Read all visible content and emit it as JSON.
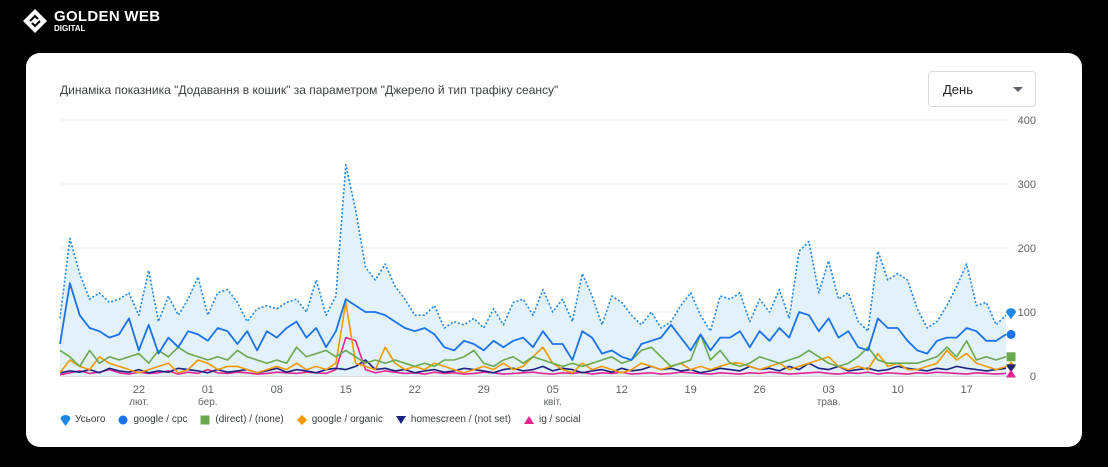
{
  "brand": {
    "name": "GOLDEN WEB",
    "sub": "DIGITAL"
  },
  "controls": {
    "granularity": "День"
  },
  "colors": {
    "total": "#1e88e5",
    "google_cpc": "#1a73e8",
    "direct": "#6aa84f",
    "google_organic": "#f29900",
    "homescreen": "#1a237e",
    "ig_social": "#e52592",
    "area_fill": "#e3f1fb"
  },
  "chart_data": {
    "type": "line",
    "title": "Динаміка показника \"Додавання в кошик\" за параметром \"Джерело й тип трафіку сеансу\"",
    "ylim": [
      0,
      400
    ],
    "yticks": [
      "400",
      "300",
      "200",
      "100",
      "0"
    ],
    "grid": true,
    "legend_position": "bottom-left",
    "x_tick_labels": [
      {
        "day": "22",
        "month": "лют."
      },
      {
        "day": "01",
        "month": "бер."
      },
      {
        "day": "08",
        "month": ""
      },
      {
        "day": "15",
        "month": ""
      },
      {
        "day": "22",
        "month": ""
      },
      {
        "day": "29",
        "month": ""
      },
      {
        "day": "05",
        "month": "квіт."
      },
      {
        "day": "12",
        "month": ""
      },
      {
        "day": "19",
        "month": ""
      },
      {
        "day": "26",
        "month": ""
      },
      {
        "day": "03",
        "month": "трав."
      },
      {
        "day": "10",
        "month": ""
      },
      {
        "day": "17",
        "month": ""
      }
    ],
    "series": [
      {
        "name": "Усього",
        "marker": "pin",
        "values": [
          90,
          215,
          160,
          120,
          130,
          115,
          120,
          130,
          95,
          165,
          85,
          125,
          95,
          120,
          155,
          95,
          130,
          135,
          115,
          85,
          105,
          110,
          105,
          115,
          120,
          100,
          150,
          95,
          125,
          330,
          260,
          170,
          150,
          175,
          140,
          120,
          95,
          95,
          110,
          75,
          85,
          80,
          90,
          75,
          105,
          80,
          115,
          120,
          95,
          135,
          100,
          120,
          85,
          160,
          125,
          80,
          125,
          115,
          95,
          80,
          100,
          75,
          85,
          110,
          130,
          95,
          70,
          125,
          120,
          130,
          85,
          120,
          100,
          135,
          90,
          195,
          210,
          130,
          180,
          120,
          130,
          85,
          70,
          195,
          150,
          160,
          150,
          105,
          75,
          85,
          110,
          140,
          175,
          110,
          115,
          80,
          95
        ]
      },
      {
        "name": "google / cpc",
        "marker": "circle",
        "values": [
          50,
          145,
          95,
          75,
          70,
          60,
          65,
          90,
          40,
          80,
          35,
          60,
          45,
          70,
          65,
          55,
          75,
          70,
          50,
          70,
          40,
          70,
          60,
          75,
          85,
          60,
          75,
          45,
          70,
          120,
          110,
          100,
          100,
          95,
          85,
          75,
          70,
          75,
          65,
          45,
          40,
          55,
          50,
          40,
          55,
          45,
          55,
          60,
          45,
          70,
          50,
          50,
          25,
          70,
          60,
          35,
          40,
          30,
          25,
          50,
          55,
          60,
          80,
          60,
          40,
          65,
          40,
          60,
          60,
          70,
          45,
          70,
          55,
          75,
          60,
          100,
          95,
          70,
          90,
          60,
          70,
          45,
          40,
          90,
          75,
          75,
          55,
          40,
          35,
          55,
          60,
          60,
          75,
          70,
          55,
          55,
          65
        ]
      },
      {
        "name": "(direct) / (none)",
        "marker": "square",
        "values": [
          40,
          30,
          15,
          40,
          20,
          30,
          25,
          30,
          35,
          20,
          40,
          30,
          45,
          35,
          30,
          25,
          30,
          25,
          40,
          30,
          25,
          20,
          25,
          20,
          45,
          30,
          35,
          40,
          30,
          40,
          30,
          20,
          25,
          20,
          25,
          20,
          15,
          20,
          15,
          25,
          25,
          30,
          40,
          20,
          15,
          25,
          30,
          20,
          30,
          25,
          20,
          15,
          20,
          15,
          20,
          25,
          30,
          20,
          25,
          40,
          45,
          30,
          15,
          20,
          25,
          65,
          25,
          40,
          20,
          15,
          20,
          30,
          25,
          20,
          25,
          30,
          40,
          30,
          20,
          15,
          20,
          30,
          45,
          25,
          20,
          20,
          20,
          20,
          25,
          30,
          45,
          30,
          55,
          25,
          30,
          25,
          30
        ]
      },
      {
        "name": "google / organic",
        "marker": "diamond",
        "values": [
          5,
          25,
          15,
          10,
          30,
          20,
          15,
          10,
          5,
          10,
          15,
          20,
          5,
          10,
          25,
          20,
          10,
          15,
          15,
          10,
          5,
          10,
          15,
          10,
          20,
          10,
          15,
          10,
          20,
          115,
          20,
          15,
          10,
          45,
          20,
          10,
          15,
          10,
          20,
          15,
          10,
          5,
          10,
          15,
          10,
          20,
          10,
          15,
          30,
          45,
          20,
          10,
          5,
          20,
          10,
          15,
          10,
          5,
          10,
          20,
          15,
          10,
          15,
          20,
          10,
          15,
          10,
          15,
          20,
          20,
          15,
          10,
          15,
          20,
          10,
          15,
          20,
          25,
          30,
          15,
          10,
          15,
          10,
          35,
          15,
          20,
          10,
          10,
          15,
          20,
          40,
          25,
          35,
          20,
          15,
          10,
          15
        ]
      },
      {
        "name": "homescreen / (not set)",
        "marker": "triangle-down",
        "values": [
          5,
          8,
          6,
          10,
          5,
          12,
          8,
          6,
          10,
          5,
          8,
          6,
          12,
          10,
          8,
          5,
          10,
          6,
          8,
          10,
          5,
          8,
          12,
          6,
          10,
          8,
          5,
          10,
          12,
          10,
          15,
          25,
          10,
          12,
          8,
          10,
          5,
          8,
          10,
          6,
          8,
          12,
          10,
          8,
          5,
          10,
          12,
          8,
          10,
          15,
          8,
          12,
          10,
          5,
          8,
          10,
          6,
          12,
          8,
          10,
          15,
          10,
          12,
          8,
          10,
          5,
          8,
          12,
          10,
          8,
          15,
          10,
          12,
          8,
          15,
          10,
          20,
          12,
          10,
          15,
          8,
          10,
          12,
          8,
          10,
          15,
          12,
          10,
          8,
          12,
          10,
          15,
          12,
          10,
          8,
          10,
          12
        ]
      },
      {
        "name": "ig / social",
        "marker": "triangle-up",
        "values": [
          2,
          5,
          8,
          4,
          6,
          10,
          5,
          3,
          6,
          4,
          5,
          8,
          3,
          6,
          4,
          10,
          5,
          4,
          6,
          5,
          3,
          4,
          6,
          5,
          4,
          6,
          5,
          4,
          10,
          60,
          55,
          10,
          5,
          8,
          6,
          4,
          5,
          3,
          6,
          4,
          5,
          3,
          4,
          6,
          5,
          3,
          4,
          5,
          6,
          4,
          3,
          5,
          4,
          6,
          3,
          5,
          4,
          6,
          3,
          4,
          5,
          3,
          4,
          6,
          5,
          4,
          3,
          5,
          4,
          3,
          5,
          4,
          6,
          5,
          3,
          4,
          5,
          6,
          4,
          3,
          5,
          4,
          6,
          3,
          5,
          4,
          3,
          5,
          4,
          6,
          5,
          4,
          3,
          5,
          4,
          3,
          4
        ]
      }
    ]
  }
}
